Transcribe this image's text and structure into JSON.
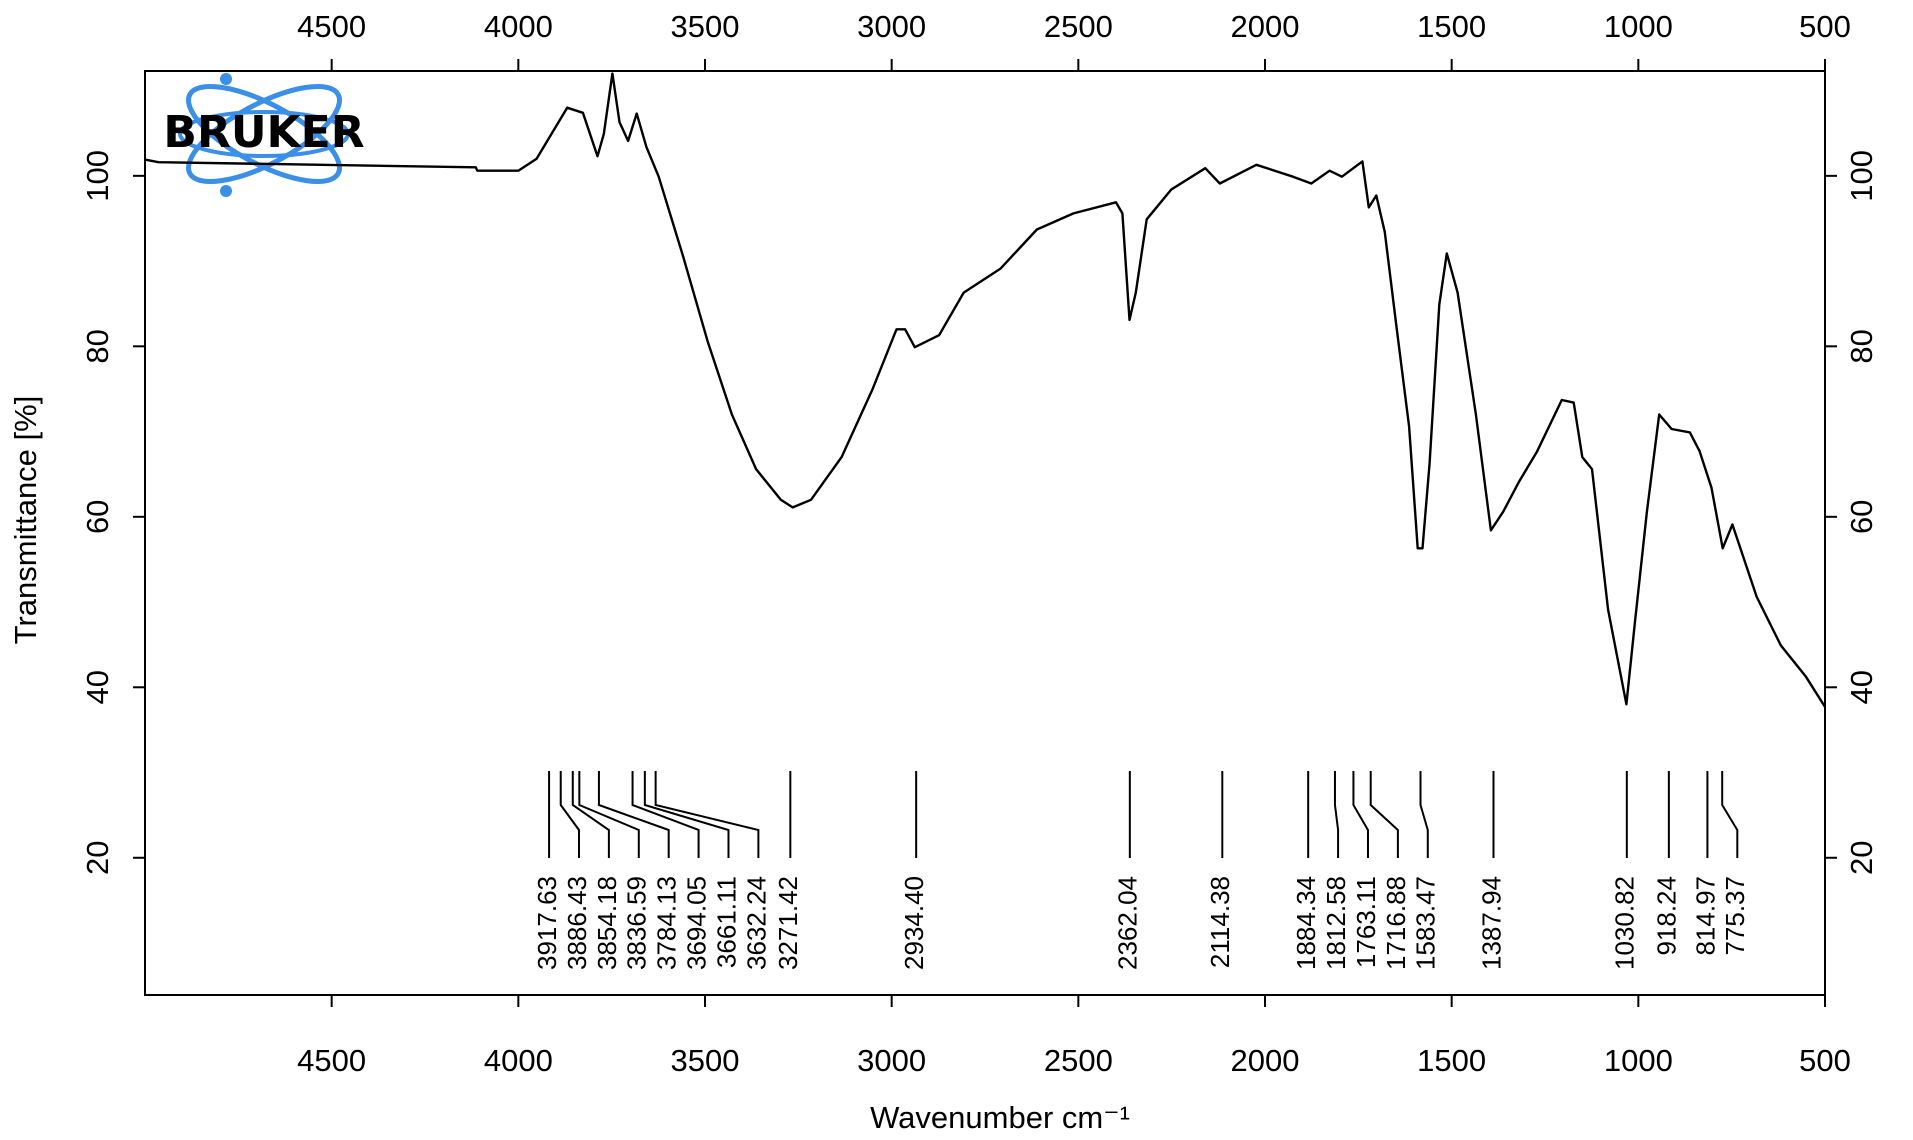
{
  "chart_data": {
    "type": "line",
    "xlabel": "Wavenumber cm⁻¹",
    "ylabel": "Transmittance [%]",
    "logo": "BRUKER",
    "color": "#000000",
    "xlim": [
      5000,
      500
    ],
    "ylim": [
      3.9,
      112.3
    ],
    "xticks": [
      4500,
      4000,
      3500,
      3000,
      2500,
      2000,
      1500,
      1000,
      500
    ],
    "yticks": [
      20,
      40,
      60,
      80,
      100
    ],
    "x": [
      5000,
      4964,
      4114,
      4110,
      4000,
      3951,
      3869,
      3827,
      3788,
      3771,
      3748,
      3729,
      3706,
      3683,
      3657,
      3624,
      3559,
      3493,
      3428,
      3363,
      3297,
      3265,
      3216,
      3134,
      3052,
      2987,
      2964,
      2938,
      2873,
      2807,
      2709,
      2611,
      2513,
      2399,
      2382,
      2363,
      2346,
      2317,
      2251,
      2160,
      2121,
      2023,
      1925,
      1876,
      1827,
      1794,
      1739,
      1722,
      1702,
      1679,
      1647,
      1614,
      1591,
      1578,
      1559,
      1533,
      1513,
      1484,
      1435,
      1395,
      1362,
      1320,
      1271,
      1205,
      1173,
      1150,
      1124,
      1081,
      1032,
      1009,
      977,
      944,
      911,
      862,
      836,
      804,
      774,
      748,
      683,
      618,
      552,
      500
    ],
    "values": [
      101.9,
      101.6,
      101,
      100.6,
      100.6,
      102,
      108,
      107.4,
      102.3,
      104.9,
      112,
      106.3,
      104.1,
      107.3,
      103.4,
      99.9,
      90.6,
      80.6,
      72,
      65.6,
      62,
      61.1,
      62,
      67,
      74.9,
      82,
      82,
      79.9,
      81.3,
      86.3,
      89.1,
      93.7,
      95.6,
      96.9,
      95.6,
      83.1,
      86.3,
      94.9,
      98.4,
      100.9,
      99.1,
      101.3,
      99.9,
      99.1,
      100.6,
      99.9,
      101.7,
      96.3,
      97.7,
      93.4,
      82,
      70.6,
      56.3,
      56.3,
      66.3,
      84.9,
      90.9,
      86.3,
      72,
      58.4,
      60.6,
      64.1,
      67.7,
      73.7,
      73.4,
      67,
      65.6,
      49.1,
      38,
      47.7,
      60.6,
      72,
      70.3,
      69.9,
      67.7,
      63.4,
      56.3,
      59.1,
      50.6,
      44.9,
      41.3,
      37.7
    ],
    "peaks": {
      "values": [
        3917.63,
        3886.43,
        3854.18,
        3836.59,
        3784.13,
        3694.05,
        3661.11,
        3632.24,
        3271.42,
        2934.4,
        2362.04,
        2114.38,
        1884.34,
        1812.58,
        1763.11,
        1716.88,
        1583.47,
        1387.94,
        1030.82,
        918.24,
        814.97,
        775.37
      ],
      "value_labels": [
        "3917.63",
        "3886.43",
        "3854.18",
        "3836.59",
        "3784.13",
        "3694.05",
        "3661.11",
        "3632.24",
        "3271.42",
        "2934.40",
        "2362.04",
        "2114.38",
        "1884.34",
        "1812.58",
        "1763.11",
        "1716.88",
        "1583.47",
        "1387.94",
        "1030.82",
        "918.24",
        "814.97",
        "775.37"
      ]
    }
  }
}
